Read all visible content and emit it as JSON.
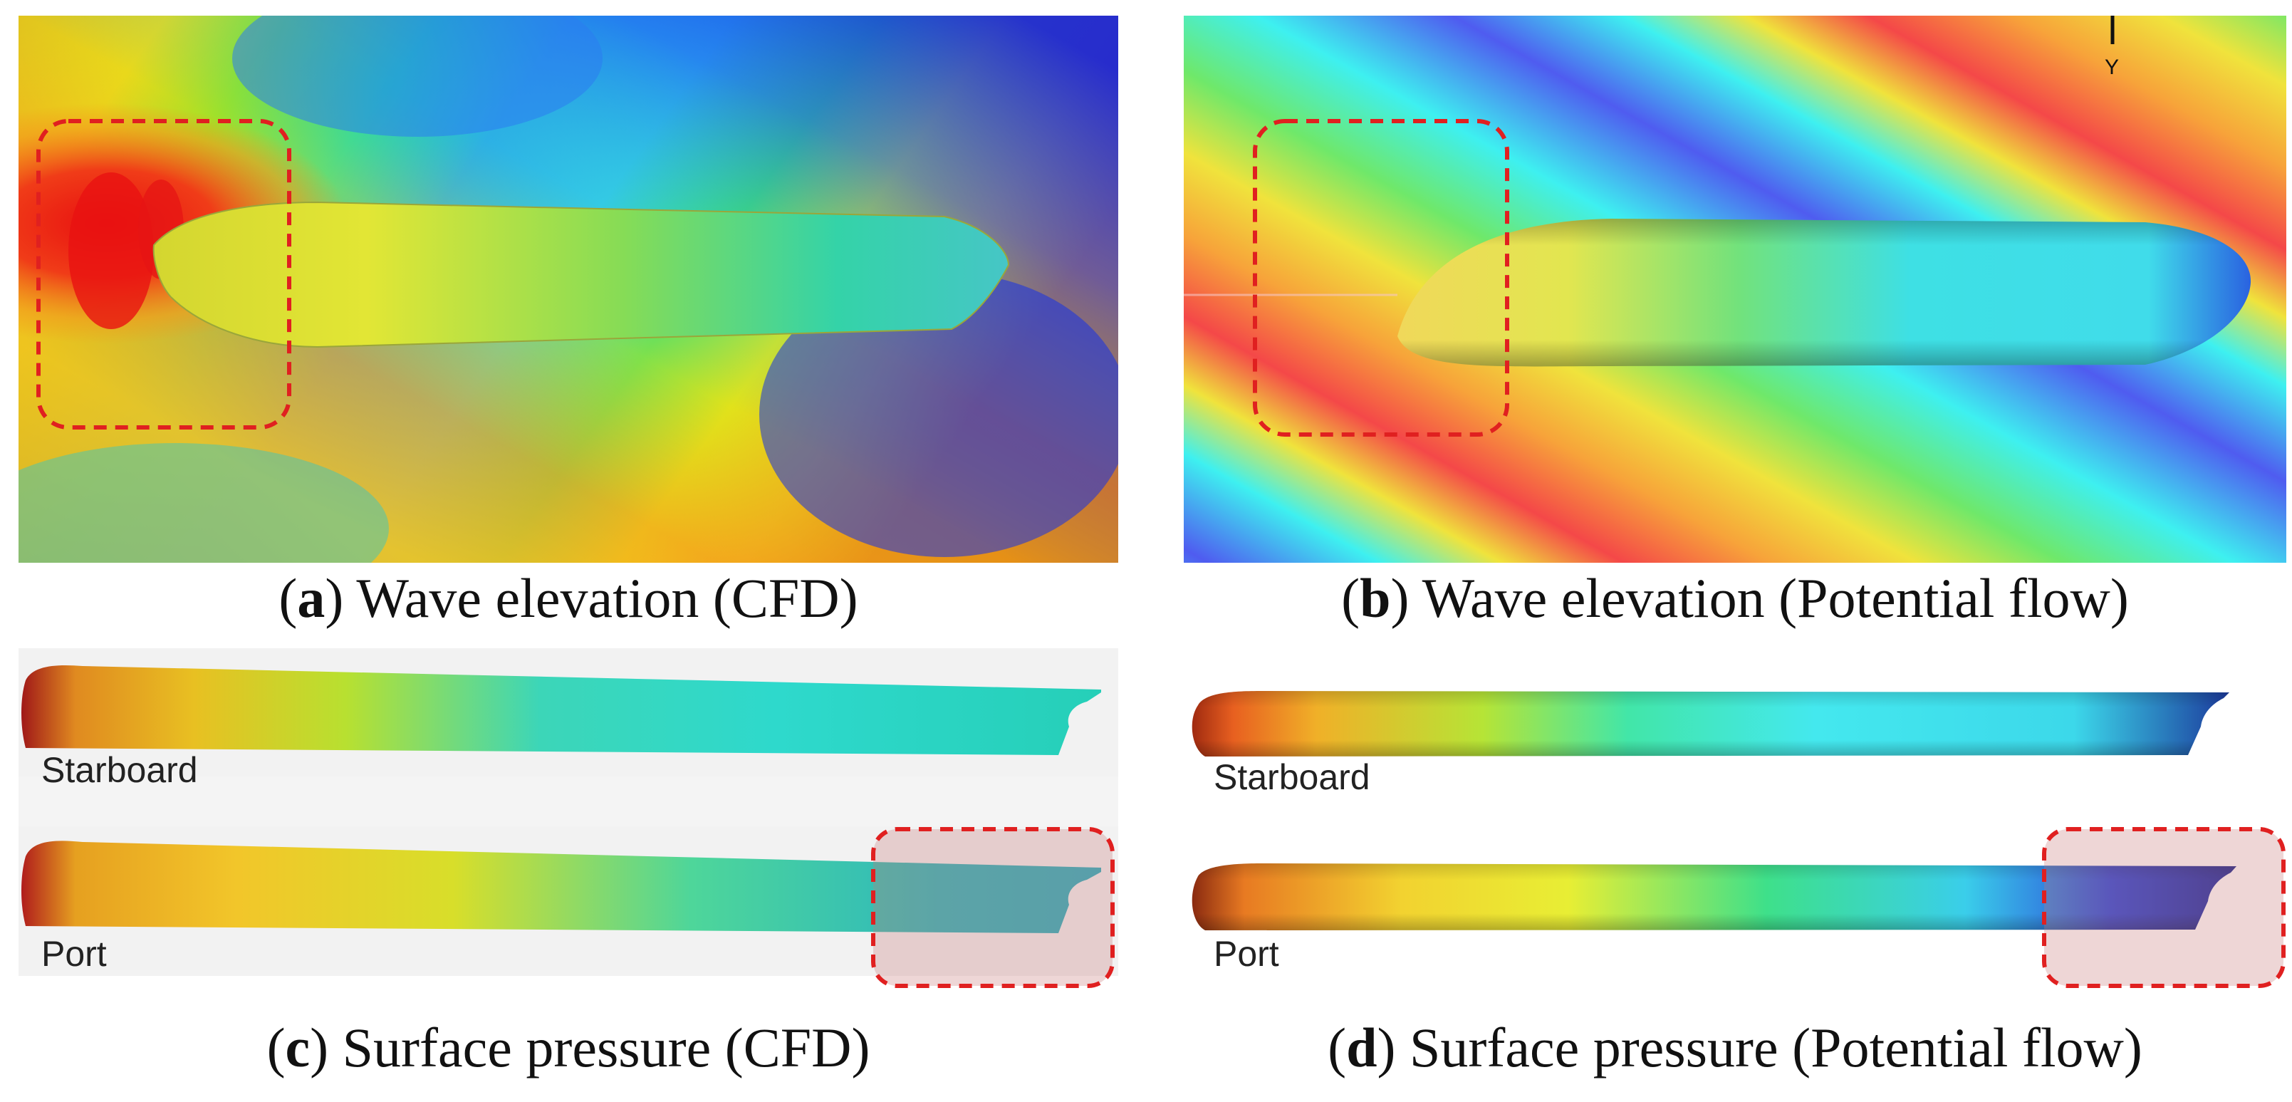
{
  "captions": {
    "a": {
      "letter": "a",
      "text": " Wave elevation (CFD)"
    },
    "b": {
      "letter": "b",
      "text": " Wave elevation (Potential flow)"
    },
    "c": {
      "letter": "c",
      "text": " Surface pressure (CFD)"
    },
    "d": {
      "letter": "d",
      "text": " Surface pressure (Potential flow)"
    }
  },
  "labels": {
    "starboard": "Starboard",
    "port": "Port",
    "axis_y": "Y"
  },
  "colors": {
    "highlight_dash": "#e02020",
    "highlight_fill": "rgba(200,120,120,0.30)"
  }
}
